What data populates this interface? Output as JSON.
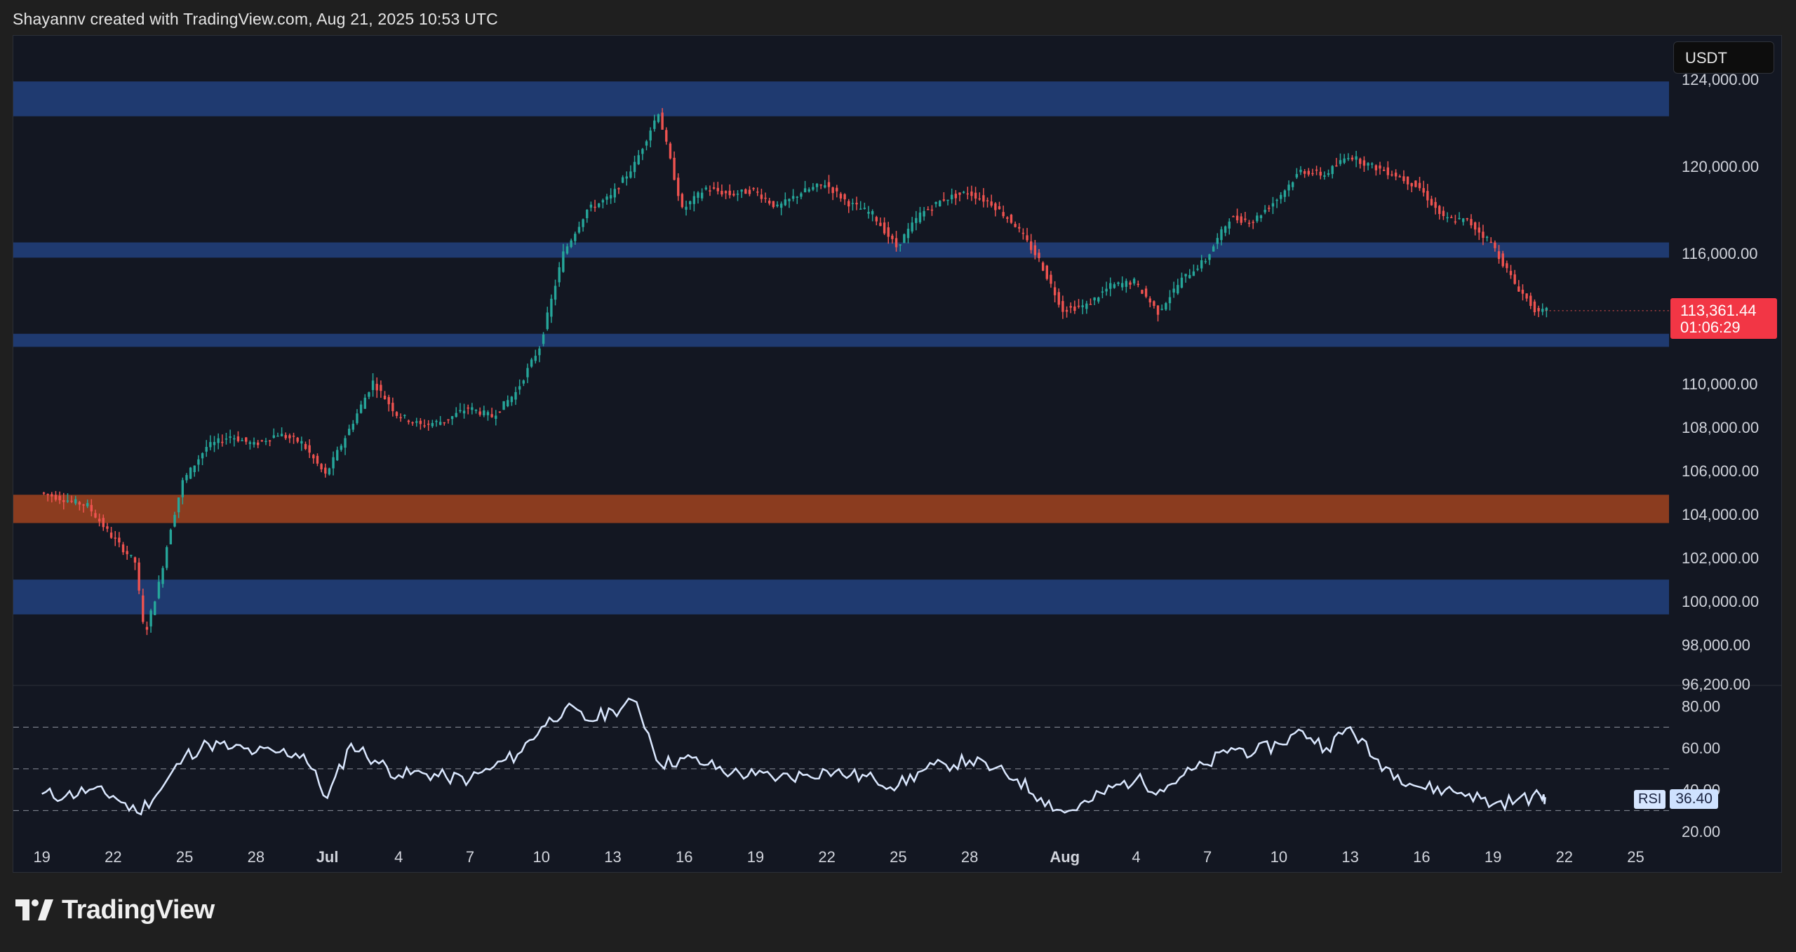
{
  "attribution": "Shayannv created with TradingView.com, Aug 21, 2025 10:53 UTC",
  "currency": "USDT",
  "current_price": {
    "price": "113,361.44",
    "countdown": "01:06:29"
  },
  "rsi": {
    "name": "RSI",
    "value": "36.40"
  },
  "logo_text": "TradingView",
  "colors": {
    "background": "#131722",
    "up": "#26a69a",
    "down": "#ef5350",
    "blue_zone": "#1f3a70",
    "orange_zone": "#8b3c1f",
    "rsi_line": "#dbe8ff",
    "axis_text": "#d1d4dc",
    "price_label": "#f23645"
  },
  "chart_data": [
    {
      "type": "candlestick",
      "title": "",
      "ylim": [
        96200,
        126000
      ],
      "y_ticks": [
        "124,000.00",
        "120,000.00",
        "116,000.00",
        "110,000.00",
        "108,000.00",
        "106,000.00",
        "104,000.00",
        "102,000.00",
        "100,000.00",
        "98,000.00",
        "96,200.00"
      ],
      "y_tick_values": [
        124000,
        120000,
        116000,
        110000,
        108000,
        106000,
        104000,
        102000,
        100000,
        98000,
        96200
      ],
      "x_ticks": [
        "19",
        "22",
        "25",
        "28",
        "Jul",
        "4",
        "7",
        "10",
        "13",
        "16",
        "19",
        "22",
        "25",
        "28",
        "Aug",
        "4",
        "7",
        "10",
        "13",
        "16",
        "19",
        "22",
        "25"
      ],
      "x_tick_days": [
        0,
        3,
        6,
        9,
        12,
        15,
        18,
        21,
        24,
        27,
        30,
        33,
        36,
        39,
        43,
        46,
        49,
        52,
        55,
        58,
        61,
        64,
        67
      ],
      "x_days_span": [
        -1.2,
        68.4
      ],
      "last_day": 63.2,
      "zones": [
        {
          "color": "blue",
          "from": 122300,
          "to": 123900
        },
        {
          "color": "blue",
          "from": 115800,
          "to": 116500
        },
        {
          "color": "blue",
          "from": 111700,
          "to": 112300
        },
        {
          "color": "orange",
          "from": 103600,
          "to": 104900
        },
        {
          "color": "blue",
          "from": 99400,
          "to": 101000
        }
      ],
      "path_points": [
        [
          0,
          105000
        ],
        [
          1,
          104700
        ],
        [
          2,
          104400
        ],
        [
          3,
          103000
        ],
        [
          4,
          101800
        ],
        [
          4.4,
          98400
        ],
        [
          5,
          100800
        ],
        [
          5.5,
          103400
        ],
        [
          6,
          105500
        ],
        [
          7,
          107100
        ],
        [
          8,
          107600
        ],
        [
          9,
          107200
        ],
        [
          10,
          107700
        ],
        [
          11,
          107300
        ],
        [
          12,
          105800
        ],
        [
          13,
          107900
        ],
        [
          14,
          110100
        ],
        [
          15,
          108600
        ],
        [
          16,
          108100
        ],
        [
          17,
          108300
        ],
        [
          18,
          108900
        ],
        [
          19,
          108500
        ],
        [
          20,
          109600
        ],
        [
          21,
          111700
        ],
        [
          22,
          116000
        ],
        [
          23,
          118000
        ],
        [
          24,
          118600
        ],
        [
          25,
          120100
        ],
        [
          26,
          122500
        ],
        [
          27,
          118000
        ],
        [
          28,
          119000
        ],
        [
          29,
          118700
        ],
        [
          30,
          118900
        ],
        [
          31,
          118100
        ],
        [
          32,
          118800
        ],
        [
          33,
          119200
        ],
        [
          34,
          118300
        ],
        [
          35,
          117800
        ],
        [
          36,
          116300
        ],
        [
          37,
          117800
        ],
        [
          38,
          118500
        ],
        [
          39,
          118800
        ],
        [
          40,
          118300
        ],
        [
          41,
          117300
        ],
        [
          42,
          115700
        ],
        [
          43,
          113400
        ],
        [
          44,
          113600
        ],
        [
          45,
          114500
        ],
        [
          46,
          114700
        ],
        [
          47,
          113300
        ],
        [
          48,
          114800
        ],
        [
          49,
          115700
        ],
        [
          50,
          117600
        ],
        [
          51,
          117500
        ],
        [
          52,
          118500
        ],
        [
          53,
          119800
        ],
        [
          54,
          119600
        ],
        [
          55,
          120500
        ],
        [
          56,
          120000
        ],
        [
          57,
          119600
        ],
        [
          58,
          119000
        ],
        [
          59,
          117600
        ],
        [
          60,
          117500
        ],
        [
          61,
          116500
        ],
        [
          62,
          114600
        ],
        [
          63,
          113200
        ],
        [
          63.2,
          113361
        ]
      ],
      "current_price": 113361.44
    },
    {
      "type": "line",
      "title": "",
      "series": [
        {
          "name": "RSI",
          "values_note_only_values": true
        }
      ],
      "ylim": [
        18,
        90
      ],
      "y_ticks": [
        "80.00",
        "60.00",
        "40.00",
        "20.00"
      ],
      "y_tick_values": [
        80,
        60,
        40,
        20
      ],
      "levels": [
        70,
        50,
        30
      ],
      "rsi_points": [
        [
          0,
          38
        ],
        [
          1,
          37
        ],
        [
          2,
          40
        ],
        [
          3,
          37
        ],
        [
          4,
          29
        ],
        [
          5,
          40
        ],
        [
          6,
          56
        ],
        [
          7,
          62
        ],
        [
          8,
          60
        ],
        [
          9,
          58
        ],
        [
          10,
          58
        ],
        [
          11,
          57
        ],
        [
          12,
          36
        ],
        [
          13,
          62
        ],
        [
          14,
          54
        ],
        [
          15,
          47
        ],
        [
          16,
          48
        ],
        [
          17,
          46
        ],
        [
          18,
          45
        ],
        [
          19,
          51
        ],
        [
          20,
          57
        ],
        [
          21,
          70
        ],
        [
          22,
          79
        ],
        [
          23,
          73
        ],
        [
          24,
          78
        ],
        [
          25,
          82
        ],
        [
          26,
          52
        ],
        [
          27,
          55
        ],
        [
          28,
          52
        ],
        [
          29,
          48
        ],
        [
          30,
          47
        ],
        [
          31,
          46
        ],
        [
          32,
          47
        ],
        [
          33,
          49
        ],
        [
          34,
          47
        ],
        [
          35,
          45
        ],
        [
          36,
          42
        ],
        [
          37,
          49
        ],
        [
          38,
          52
        ],
        [
          39,
          54
        ],
        [
          40,
          50
        ],
        [
          41,
          45
        ],
        [
          42,
          36
        ],
        [
          43,
          29
        ],
        [
          44,
          34
        ],
        [
          45,
          41
        ],
        [
          46,
          45
        ],
        [
          47,
          40
        ],
        [
          48,
          47
        ],
        [
          49,
          52
        ],
        [
          50,
          60
        ],
        [
          51,
          58
        ],
        [
          52,
          62
        ],
        [
          53,
          68
        ],
        [
          54,
          60
        ],
        [
          55,
          70
        ],
        [
          56,
          55
        ],
        [
          57,
          47
        ],
        [
          58,
          41
        ],
        [
          59,
          40
        ],
        [
          60,
          38
        ],
        [
          61,
          33
        ],
        [
          62,
          35
        ],
        [
          63,
          37
        ],
        [
          63.2,
          36.4
        ]
      ]
    }
  ]
}
